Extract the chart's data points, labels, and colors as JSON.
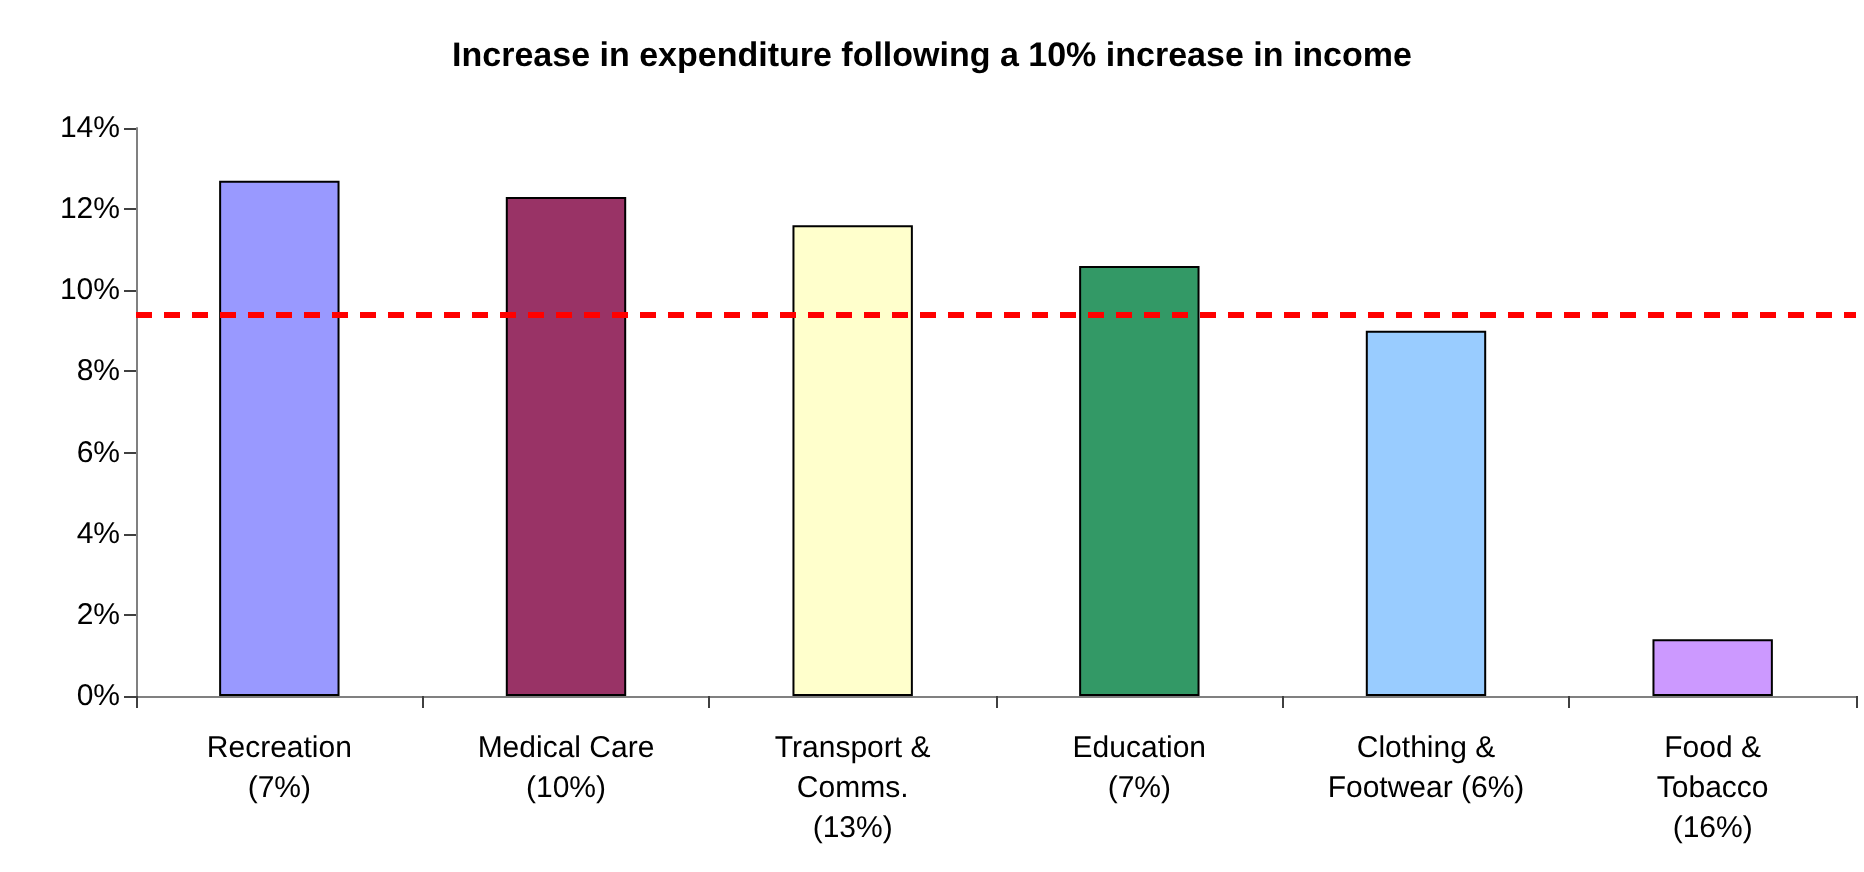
{
  "chart_data": {
    "type": "bar",
    "title": "Increase in expenditure following a 10% increase in income",
    "categories": [
      "Recreation\n(7%)",
      "Medical Care\n(10%)",
      "Transport &\nComms.\n(13%)",
      "Education\n(7%)",
      "Clothing &\nFootwear (6%)",
      "Food &\nTobacco\n(16%)"
    ],
    "values": [
      12.7,
      12.3,
      11.6,
      10.6,
      9.0,
      1.4
    ],
    "colors": [
      "#9999ff",
      "#993366",
      "#ffffcc",
      "#339966",
      "#99ccff",
      "#cc99ff"
    ],
    "ylim": [
      0,
      14
    ],
    "yticks": [
      {
        "value": 0,
        "label": "0%"
      },
      {
        "value": 2,
        "label": "2%"
      },
      {
        "value": 4,
        "label": "4%"
      },
      {
        "value": 6,
        "label": "6%"
      },
      {
        "value": 8,
        "label": "8%"
      },
      {
        "value": 10,
        "label": "10%"
      },
      {
        "value": 12,
        "label": "12%"
      },
      {
        "value": 14,
        "label": "14%"
      }
    ],
    "ref_lines": [
      {
        "axis": "y",
        "value": 9.4,
        "color": "#ff0000",
        "line_style": "dashed"
      }
    ]
  }
}
